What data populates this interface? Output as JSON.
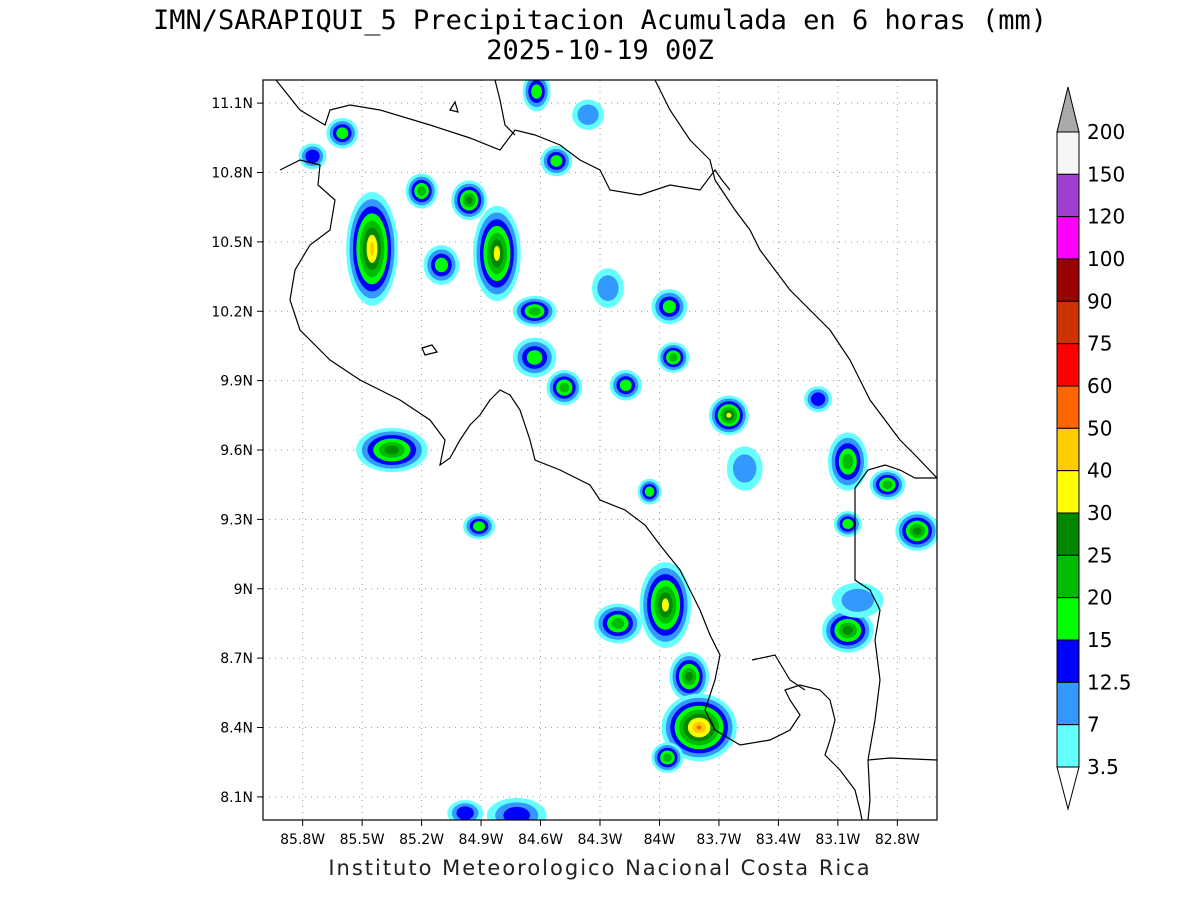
{
  "title": "IMN/SARAPIQUI_5 Precipitacion Acumulada en 6 horas (mm)",
  "subtitle": "2025-10-19 00Z",
  "footer": "Instituto Meteorologico Nacional Costa Rica",
  "map": {
    "lon_range": [
      -86.0,
      -82.6
    ],
    "lat_range": [
      8.0,
      11.2
    ],
    "lat_ticks": [
      "11.1N",
      "10.8N",
      "10.5N",
      "10.2N",
      "9.9N",
      "9.6N",
      "9.3N",
      "9N",
      "8.7N",
      "8.4N",
      "8.1N"
    ],
    "lon_ticks": [
      "85.8W",
      "85.5W",
      "85.2W",
      "84.9W",
      "84.6W",
      "84.3W",
      "84W",
      "83.7W",
      "83.4W",
      "83.1W",
      "82.8W"
    ],
    "grid": "dotted",
    "coastline_color": "#000000"
  },
  "legend": {
    "labels": [
      "200",
      "150",
      "120",
      "100",
      "90",
      "75",
      "60",
      "50",
      "40",
      "30",
      "25",
      "20",
      "15",
      "12.5",
      "7",
      "3.5"
    ],
    "colors": [
      "#aaaaaa",
      "#f5f5f5",
      "#a040d0",
      "#ff00ff",
      "#990000",
      "#cc3300",
      "#ff0000",
      "#ff6600",
      "#ffcc00",
      "#ffff00",
      "#008800",
      "#00bb00",
      "#00ff00",
      "#0000ff",
      "#3399ff",
      "#66ffff",
      "#ffffff"
    ]
  },
  "cells": [
    {
      "lon": -85.45,
      "lat": 10.47,
      "rx": 0.1,
      "ry": 0.22,
      "level": 7
    },
    {
      "lon": -84.82,
      "lat": 10.45,
      "rx": 0.09,
      "ry": 0.18,
      "level": 6
    },
    {
      "lon": -84.96,
      "lat": 10.68,
      "rx": 0.06,
      "ry": 0.06,
      "level": 5
    },
    {
      "lon": -85.2,
      "lat": 10.72,
      "rx": 0.05,
      "ry": 0.05,
      "level": 4
    },
    {
      "lon": -84.63,
      "lat": 10.2,
      "rx": 0.08,
      "ry": 0.04,
      "level": 4
    },
    {
      "lon": -84.63,
      "lat": 10.0,
      "rx": 0.08,
      "ry": 0.06,
      "level": 3
    },
    {
      "lon": -84.52,
      "lat": 10.85,
      "rx": 0.05,
      "ry": 0.04,
      "level": 3
    },
    {
      "lon": -85.35,
      "lat": 9.6,
      "rx": 0.15,
      "ry": 0.07,
      "level": 5
    },
    {
      "lon": -84.91,
      "lat": 9.27,
      "rx": 0.05,
      "ry": 0.03,
      "level": 3
    },
    {
      "lon": -84.48,
      "lat": 9.87,
      "rx": 0.06,
      "ry": 0.05,
      "level": 4
    },
    {
      "lon": -83.95,
      "lat": 10.22,
      "rx": 0.06,
      "ry": 0.05,
      "level": 3
    },
    {
      "lon": -83.93,
      "lat": 10.0,
      "rx": 0.05,
      "ry": 0.04,
      "level": 4
    },
    {
      "lon": -84.17,
      "lat": 9.88,
      "rx": 0.05,
      "ry": 0.04,
      "level": 3
    },
    {
      "lon": -83.65,
      "lat": 9.75,
      "rx": 0.07,
      "ry": 0.06,
      "level": 6
    },
    {
      "lon": -83.05,
      "lat": 9.55,
      "rx": 0.07,
      "ry": 0.1,
      "level": 4
    },
    {
      "lon": -82.85,
      "lat": 9.45,
      "rx": 0.06,
      "ry": 0.04,
      "level": 4
    },
    {
      "lon": -82.7,
      "lat": 9.25,
      "rx": 0.08,
      "ry": 0.06,
      "level": 5
    },
    {
      "lon": -83.97,
      "lat": 8.93,
      "rx": 0.1,
      "ry": 0.16,
      "level": 6
    },
    {
      "lon": -84.21,
      "lat": 8.85,
      "rx": 0.09,
      "ry": 0.06,
      "level": 4
    },
    {
      "lon": -83.85,
      "lat": 8.62,
      "rx": 0.07,
      "ry": 0.08,
      "level": 5
    },
    {
      "lon": -83.8,
      "lat": 8.4,
      "rx": 0.16,
      "ry": 0.12,
      "level": 8
    },
    {
      "lon": -83.96,
      "lat": 8.27,
      "rx": 0.05,
      "ry": 0.04,
      "level": 4
    },
    {
      "lon": -83.05,
      "lat": 8.82,
      "rx": 0.1,
      "ry": 0.07,
      "level": 5
    },
    {
      "lon": -83.2,
      "lat": 9.82,
      "rx": 0.04,
      "ry": 0.03,
      "level": 2
    },
    {
      "lon": -83.05,
      "lat": 9.28,
      "rx": 0.04,
      "ry": 0.03,
      "level": 3
    },
    {
      "lon": -84.72,
      "lat": 8.02,
      "rx": 0.12,
      "ry": 0.05,
      "level": 2
    },
    {
      "lon": -84.98,
      "lat": 8.03,
      "rx": 0.06,
      "ry": 0.03,
      "level": 2
    },
    {
      "lon": -85.6,
      "lat": 10.97,
      "rx": 0.05,
      "ry": 0.04,
      "level": 3
    },
    {
      "lon": -85.75,
      "lat": 10.87,
      "rx": 0.04,
      "ry": 0.03,
      "level": 2
    },
    {
      "lon": -84.62,
      "lat": 11.15,
      "rx": 0.04,
      "ry": 0.06,
      "level": 3
    },
    {
      "lon": -84.36,
      "lat": 11.05,
      "rx": 0.05,
      "ry": 0.04,
      "level": 1
    },
    {
      "lon": -84.26,
      "lat": 10.3,
      "rx": 0.05,
      "ry": 0.06,
      "level": 1
    },
    {
      "lon": -83.57,
      "lat": 9.52,
      "rx": 0.06,
      "ry": 0.07,
      "level": 1
    },
    {
      "lon": -83.0,
      "lat": 8.95,
      "rx": 0.1,
      "ry": 0.05,
      "level": 1
    },
    {
      "lon": -85.1,
      "lat": 10.4,
      "rx": 0.06,
      "ry": 0.06,
      "level": 3
    },
    {
      "lon": -84.05,
      "lat": 9.42,
      "rx": 0.03,
      "ry": 0.03,
      "level": 3
    }
  ]
}
